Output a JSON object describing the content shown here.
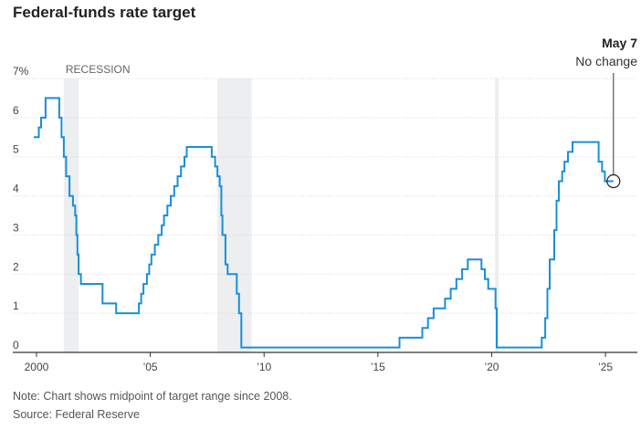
{
  "chart_data": {
    "type": "line",
    "title": "Federal-funds rate target",
    "xlabel": "",
    "ylabel": "",
    "xlim": [
      1999.6,
      2026.4
    ],
    "ylim": [
      0,
      7
    ],
    "x_ticks": [
      {
        "value": 2000,
        "label": "2000"
      },
      {
        "value": 2005,
        "label": "’05"
      },
      {
        "value": 2010,
        "label": "’10"
      },
      {
        "value": 2015,
        "label": "’15"
      },
      {
        "value": 2020,
        "label": "’20"
      },
      {
        "value": 2025,
        "label": "’25"
      }
    ],
    "y_ticks": [
      {
        "value": 0,
        "label": "0"
      },
      {
        "value": 1,
        "label": "1"
      },
      {
        "value": 2,
        "label": "2"
      },
      {
        "value": 3,
        "label": "3"
      },
      {
        "value": 4,
        "label": "4"
      },
      {
        "value": 5,
        "label": "5"
      },
      {
        "value": 6,
        "label": "6"
      },
      {
        "value": 7,
        "label": "7%"
      }
    ],
    "grid": true,
    "recession_label": "RECESSION",
    "recessions": [
      [
        2001.2,
        2001.85
      ],
      [
        2007.95,
        2009.45
      ],
      [
        2020.15,
        2020.3
      ]
    ],
    "series": [
      {
        "color": "#1a8fd6",
        "step": true,
        "points": [
          [
            1999.88,
            5.5
          ],
          [
            2000.1,
            5.75
          ],
          [
            2000.2,
            6.0
          ],
          [
            2000.4,
            6.5
          ],
          [
            2001.0,
            6.0
          ],
          [
            2001.1,
            5.5
          ],
          [
            2001.2,
            5.0
          ],
          [
            2001.3,
            4.5
          ],
          [
            2001.45,
            4.0
          ],
          [
            2001.6,
            3.75
          ],
          [
            2001.7,
            3.5
          ],
          [
            2001.75,
            3.0
          ],
          [
            2001.8,
            2.5
          ],
          [
            2001.85,
            2.0
          ],
          [
            2001.95,
            1.75
          ],
          [
            2002.9,
            1.25
          ],
          [
            2003.5,
            1.0
          ],
          [
            2004.5,
            1.25
          ],
          [
            2004.6,
            1.5
          ],
          [
            2004.7,
            1.75
          ],
          [
            2004.85,
            2.0
          ],
          [
            2004.95,
            2.25
          ],
          [
            2005.05,
            2.5
          ],
          [
            2005.2,
            2.75
          ],
          [
            2005.35,
            3.0
          ],
          [
            2005.5,
            3.25
          ],
          [
            2005.6,
            3.5
          ],
          [
            2005.75,
            3.75
          ],
          [
            2005.9,
            4.0
          ],
          [
            2006.05,
            4.25
          ],
          [
            2006.2,
            4.5
          ],
          [
            2006.35,
            4.75
          ],
          [
            2006.5,
            5.0
          ],
          [
            2006.6,
            5.25
          ],
          [
            2007.7,
            5.0
          ],
          [
            2007.85,
            4.75
          ],
          [
            2007.95,
            4.5
          ],
          [
            2008.05,
            4.25
          ],
          [
            2008.12,
            3.5
          ],
          [
            2008.17,
            3.0
          ],
          [
            2008.3,
            2.25
          ],
          [
            2008.4,
            2.0
          ],
          [
            2008.8,
            1.5
          ],
          [
            2008.9,
            1.0
          ],
          [
            2009.0,
            0.125
          ],
          [
            2015.95,
            0.375
          ],
          [
            2016.95,
            0.625
          ],
          [
            2017.2,
            0.875
          ],
          [
            2017.45,
            1.125
          ],
          [
            2017.95,
            1.375
          ],
          [
            2018.2,
            1.625
          ],
          [
            2018.45,
            1.875
          ],
          [
            2018.7,
            2.125
          ],
          [
            2018.95,
            2.375
          ],
          [
            2019.55,
            2.125
          ],
          [
            2019.7,
            1.875
          ],
          [
            2019.85,
            1.625
          ],
          [
            2020.17,
            1.125
          ],
          [
            2020.22,
            0.125
          ],
          [
            2022.2,
            0.375
          ],
          [
            2022.35,
            0.875
          ],
          [
            2022.45,
            1.625
          ],
          [
            2022.55,
            2.375
          ],
          [
            2022.75,
            3.125
          ],
          [
            2022.85,
            3.875
          ],
          [
            2022.95,
            4.375
          ],
          [
            2023.1,
            4.625
          ],
          [
            2023.2,
            4.875
          ],
          [
            2023.35,
            5.125
          ],
          [
            2023.55,
            5.375
          ],
          [
            2024.7,
            4.875
          ],
          [
            2024.85,
            4.625
          ],
          [
            2024.97,
            4.375
          ],
          [
            2025.35,
            4.375
          ]
        ]
      }
    ],
    "annotation": {
      "title": "May 7",
      "text": "No change",
      "x": 2025.35,
      "y": 4.375
    }
  },
  "note": "Note: Chart shows midpoint of target range since 2008.",
  "source": "Source: Federal Reserve"
}
